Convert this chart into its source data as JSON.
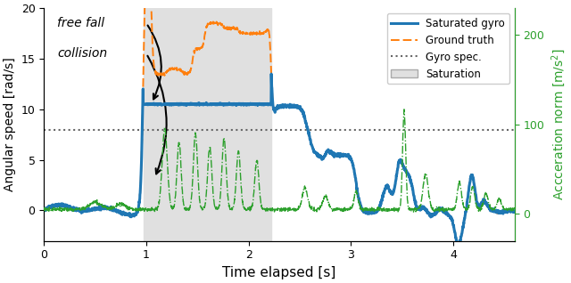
{
  "title": "",
  "xlabel": "Time elapsed [s]",
  "ylabel_left": "Angular speed [rad/s]",
  "ylabel_right": "Accceration norm [m/s²]",
  "xlim": [
    0,
    4.6
  ],
  "ylim_left": [
    -3,
    20
  ],
  "ylim_right": [
    -30,
    230
  ],
  "gyro_spec_value": 8.0,
  "sat_limit": 10.5,
  "saturation_regions": [
    [
      0.97,
      2.22
    ]
  ],
  "colors": {
    "saturated_gyro": "#1f77b4",
    "ground_truth": "#ff7f0e",
    "gyro_spec": "#666666",
    "acceleration": "#2ca02c",
    "saturation_fill": "#e0e0e0",
    "annotation_arrow": "#000000"
  }
}
